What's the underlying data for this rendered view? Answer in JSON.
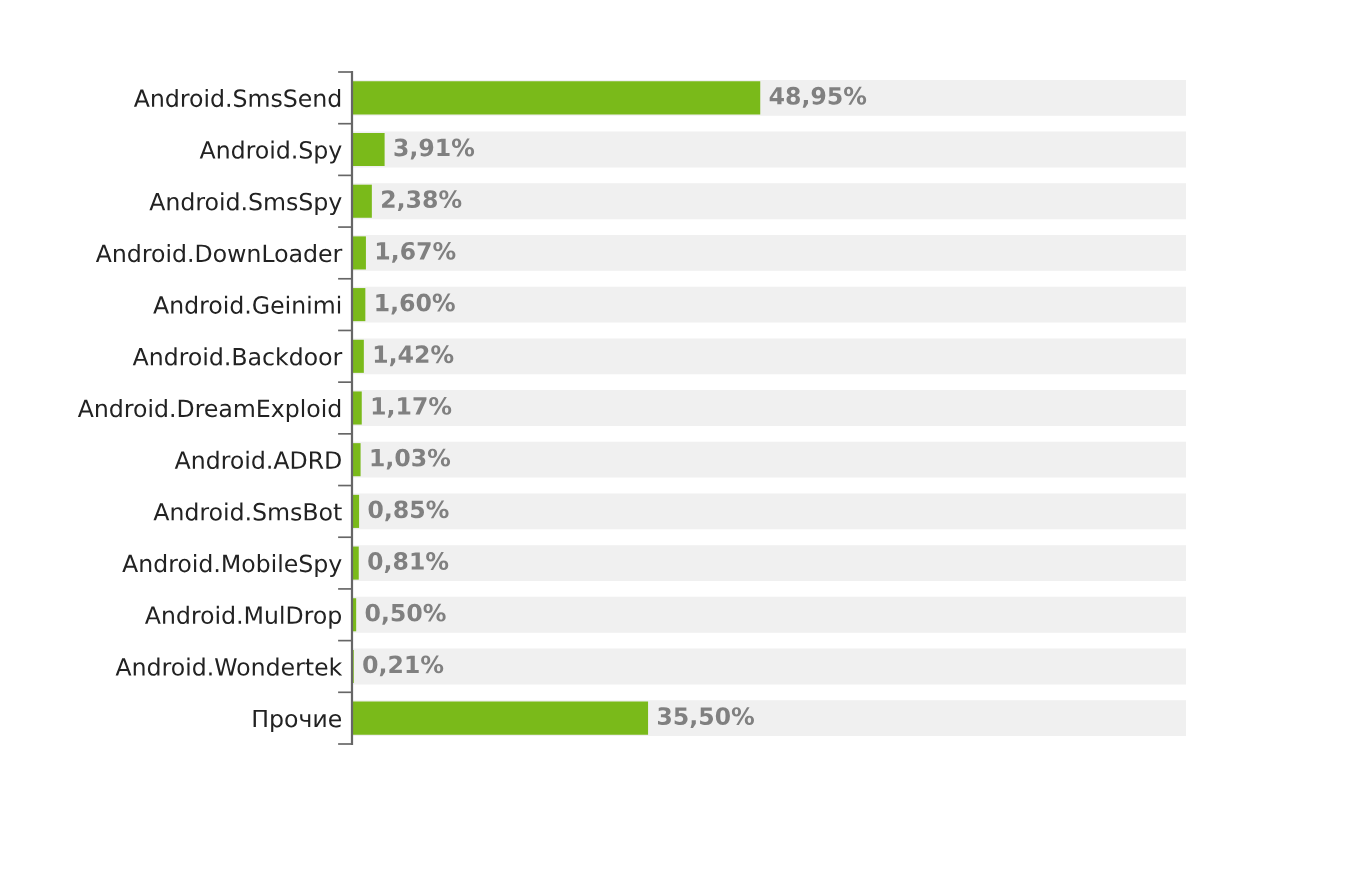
{
  "chart_data": {
    "type": "bar",
    "orientation": "horizontal",
    "categories": [
      "Android.SmsSend",
      "Android.Spy",
      "Android.SmsSpy",
      "Android.DownLoader",
      "Android.Geinimi",
      "Android.Backdoor",
      "Android.DreamExploid",
      "Android.ADRD",
      "Android.SmsBot",
      "Android.MobileSpy",
      "Android.MulDrop",
      "Android.Wondertek",
      "Прочие"
    ],
    "series": [
      {
        "color": "#7aba1a",
        "values": [
          48.95,
          3.91,
          2.38,
          1.67,
          1.6,
          1.42,
          1.17,
          1.03,
          0.85,
          0.81,
          0.5,
          0.21,
          35.5
        ],
        "value_labels": [
          "48,95%",
          "3,91%",
          "2,38%",
          "1,67%",
          "1,60%",
          "1,42%",
          "1,17%",
          "1,03%",
          "0,85%",
          "0,81%",
          "0,50%",
          "0,21%",
          "35,50%"
        ]
      }
    ],
    "xlim": [
      0,
      100
    ],
    "tick_labels": "y",
    "grid": false,
    "legend": false
  }
}
